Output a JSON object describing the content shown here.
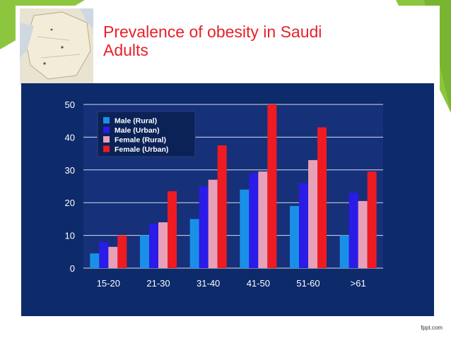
{
  "slide": {
    "title_line1": "Prevalence of obesity in Saudi",
    "title_line2": "Adults",
    "footer_brand": "fppt.com",
    "accent_green": "#8cc63f",
    "title_color": "#e8202a",
    "panel_color": "#0d2a6b"
  },
  "chart_data": {
    "type": "bar",
    "categories": [
      "15-20",
      "21-30",
      "31-40",
      "41-50",
      "51-60",
      ">61"
    ],
    "series": [
      {
        "name": "Male (Rural)",
        "color": "#1a8fe8",
        "values": [
          4.5,
          10,
          15,
          24,
          19,
          10
        ]
      },
      {
        "name": "Male (Urban)",
        "color": "#2a1be8",
        "values": [
          8,
          13.5,
          25,
          29,
          26,
          23
        ]
      },
      {
        "name": "Female (Rural)",
        "color": "#e8a0b8",
        "values": [
          6.5,
          14,
          27,
          29.5,
          33,
          20.5
        ]
      },
      {
        "name": "Female (Urban)",
        "color": "#ee1b22",
        "values": [
          10,
          23.5,
          37.5,
          50,
          43,
          29.5
        ]
      }
    ],
    "ylim": [
      0,
      50
    ],
    "yticks": [
      0,
      10,
      20,
      30,
      40,
      50
    ],
    "grid": true,
    "legend_position": "top-left"
  }
}
